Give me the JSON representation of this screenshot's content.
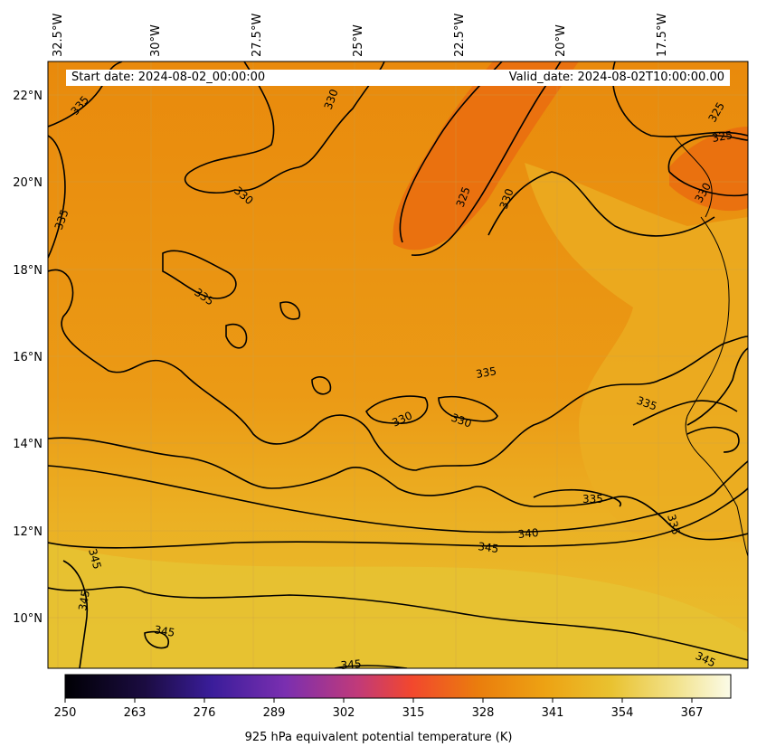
{
  "header": {
    "start_date": "Start date: 2024-08-02_00:00:00",
    "valid_date": "Valid_date: 2024-08-02T10:00:00.00"
  },
  "map": {
    "lon_labels": [
      "32.5°W",
      "30°W",
      "27.5°W",
      "25°W",
      "22.5°W",
      "20°W",
      "17.5°W"
    ],
    "lat_labels": [
      "22°N",
      "20°N",
      "18°N",
      "16°N",
      "14°N",
      "12°N",
      "10°N"
    ],
    "contour_labels": [
      "335",
      "330",
      "335",
      "330",
      "325",
      "330",
      "325",
      "325",
      "330",
      "335",
      "335",
      "335",
      "330",
      "330",
      "335",
      "335",
      "345",
      "345",
      "340",
      "345",
      "345",
      "345",
      "345"
    ]
  },
  "colorbar": {
    "ticks": [
      "250",
      "263",
      "276",
      "289",
      "302",
      "315",
      "328",
      "341",
      "354",
      "367"
    ],
    "label": "925 hPa equivalent potential temperature (K)",
    "colors": [
      "#000004",
      "#1f0c48",
      "#550f6d",
      "#88226a",
      "#ba3655",
      "#e35933",
      "#f98e09",
      "#f5c02b",
      "#fcffa4"
    ]
  }
}
